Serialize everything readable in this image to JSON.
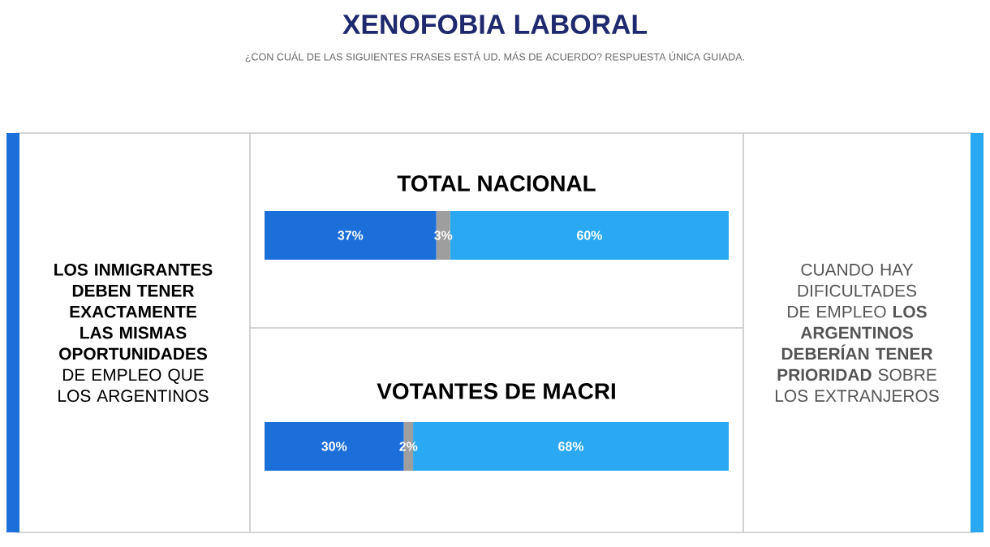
{
  "chart_data": [
    {
      "type": "other",
      "title": "XENOFOBIA LABORAL",
      "subtitle": "¿CON CUÁL DE LAS SIGUIENTES FRASES ESTÁ UD. MÁS DE ACUERDO? RESPUESTA ÚNICA GUIADA.",
      "annotations": [
        "**LOS INMIGRANTES DEBEN TENER EXACTAMENTE LAS MISMAS OPORTUNIDADES** DE EMPLEO QUE LOS ARGENTINOS",
        "CUANDO HAY DIFICULTADES DE EMPLEO **LOS ARGENTINOS DEBERÍAN TENER PRIORIDAD** SOBRE LOS EXTRANJEROS"
      ]
    },
    {
      "type": "bar",
      "orientation": "horizontal",
      "stacked": true,
      "title": "TOTAL NACIONAL",
      "categories": [
        null
      ],
      "series": [
        {
          "color": "#1c6fd8",
          "values": [
            37
          ],
          "value_labels": [
            "37%"
          ]
        },
        {
          "color": "#9e9e9e",
          "values": [
            3
          ],
          "value_labels": [
            "3%"
          ]
        },
        {
          "color": "#2aa8f2",
          "values": [
            60
          ],
          "value_labels": [
            "60%"
          ]
        }
      ]
    },
    {
      "type": "bar",
      "orientation": "horizontal",
      "stacked": true,
      "title": "VOTANTES DE MACRI",
      "categories": [
        null
      ],
      "series": [
        {
          "color": "#1c6fd8",
          "values": [
            30
          ],
          "value_labels": [
            "30%"
          ]
        },
        {
          "color": "#9e9e9e",
          "values": [
            2
          ],
          "value_labels": [
            "2%"
          ]
        },
        {
          "color": "#2aa8f2",
          "values": [
            68
          ],
          "value_labels": [
            "68%"
          ]
        }
      ]
    }
  ]
}
